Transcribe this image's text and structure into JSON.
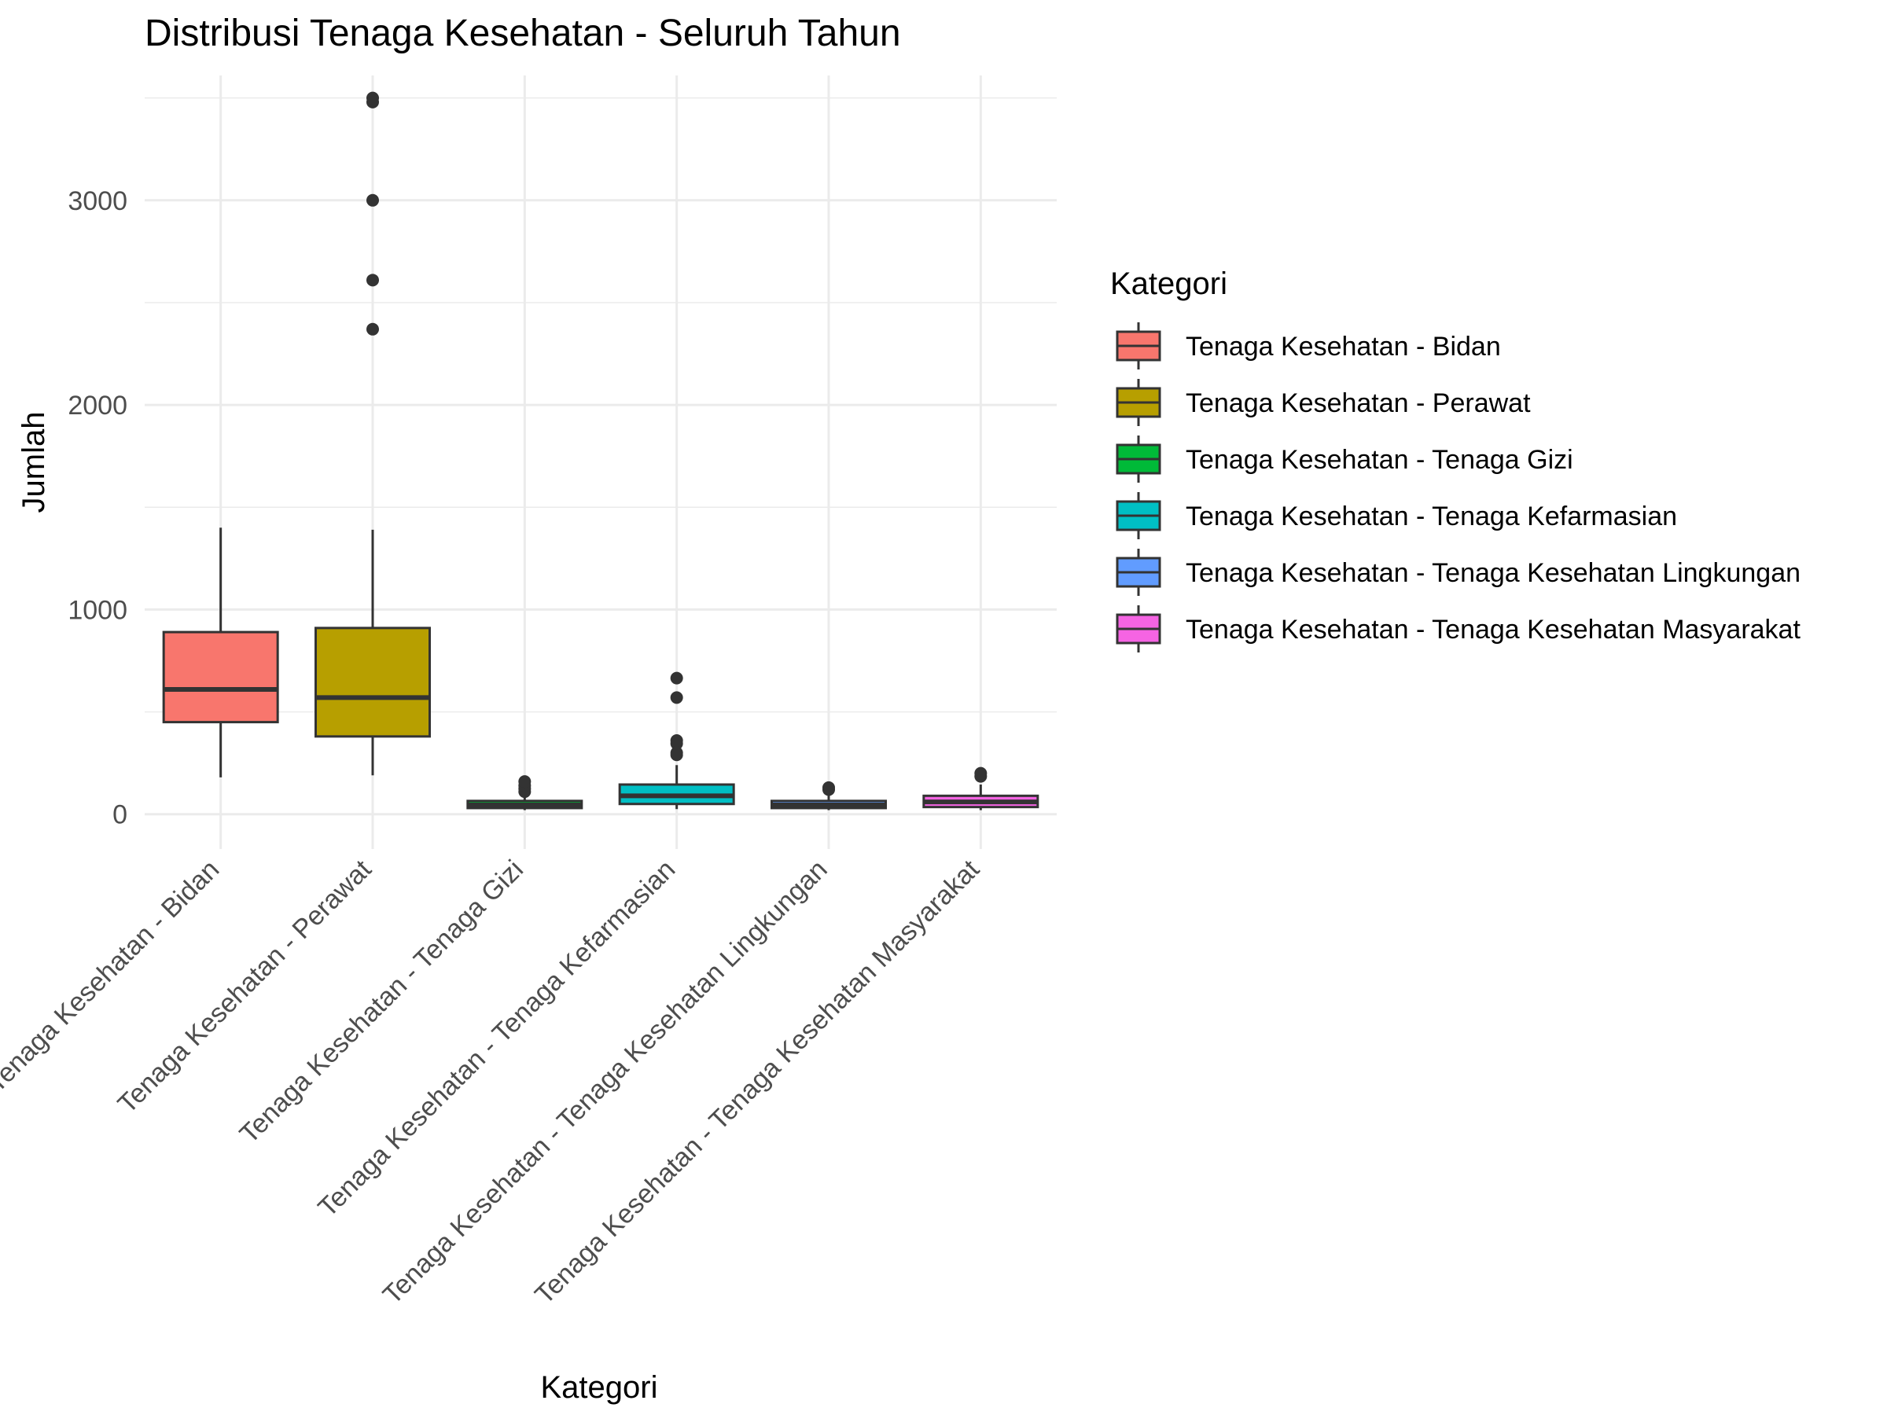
{
  "chart_data": {
    "type": "boxplot",
    "title": "Distribusi Tenaga Kesehatan - Seluruh Tahun",
    "xlabel": "Kategori",
    "ylabel": "Jumlah",
    "ylim": [
      -170,
      3610
    ],
    "yticks": [
      0,
      1000,
      2000,
      3000
    ],
    "grid": true,
    "legend": {
      "title": "Kategori",
      "position": "right"
    },
    "categories": [
      "Tenaga Kesehatan - Bidan",
      "Tenaga Kesehatan - Perawat",
      "Tenaga Kesehatan - Tenaga Gizi",
      "Tenaga Kesehatan - Tenaga Kefarmasian",
      "Tenaga Kesehatan - Tenaga Kesehatan Lingkungan",
      "Tenaga Kesehatan - Tenaga Kesehatan Masyarakat"
    ],
    "series": [
      {
        "category": "Tenaga Kesehatan - Bidan",
        "color": "#F8766D",
        "min": 180,
        "q1": 450,
        "median": 610,
        "q3": 890,
        "max": 1400,
        "outliers": []
      },
      {
        "category": "Tenaga Kesehatan - Perawat",
        "color": "#B79F00",
        "min": 190,
        "q1": 380,
        "median": 570,
        "q3": 910,
        "max": 1390,
        "outliers": [
          2370,
          2610,
          3000,
          3480,
          3500
        ]
      },
      {
        "category": "Tenaga Kesehatan - Tenaga Gizi",
        "color": "#00BA38",
        "min": 20,
        "q1": 30,
        "median": 45,
        "q3": 65,
        "max": 100,
        "outliers": [
          110,
          125,
          140,
          160
        ]
      },
      {
        "category": "Tenaga Kesehatan - Tenaga Kefarmasian",
        "color": "#00BFC4",
        "min": 25,
        "q1": 50,
        "median": 90,
        "q3": 145,
        "max": 240,
        "outliers": [
          290,
          300,
          345,
          360,
          570,
          665
        ]
      },
      {
        "category": "Tenaga Kesehatan - Tenaga Kesehatan Lingkungan",
        "color": "#619CFF",
        "min": 20,
        "q1": 30,
        "median": 45,
        "q3": 65,
        "max": 100,
        "outliers": [
          120,
          130
        ]
      },
      {
        "category": "Tenaga Kesehatan - Tenaga Kesehatan Masyarakat",
        "color": "#F564E3",
        "min": 20,
        "q1": 35,
        "median": 60,
        "q3": 90,
        "max": 145,
        "outliers": [
          185,
          200
        ]
      }
    ]
  }
}
